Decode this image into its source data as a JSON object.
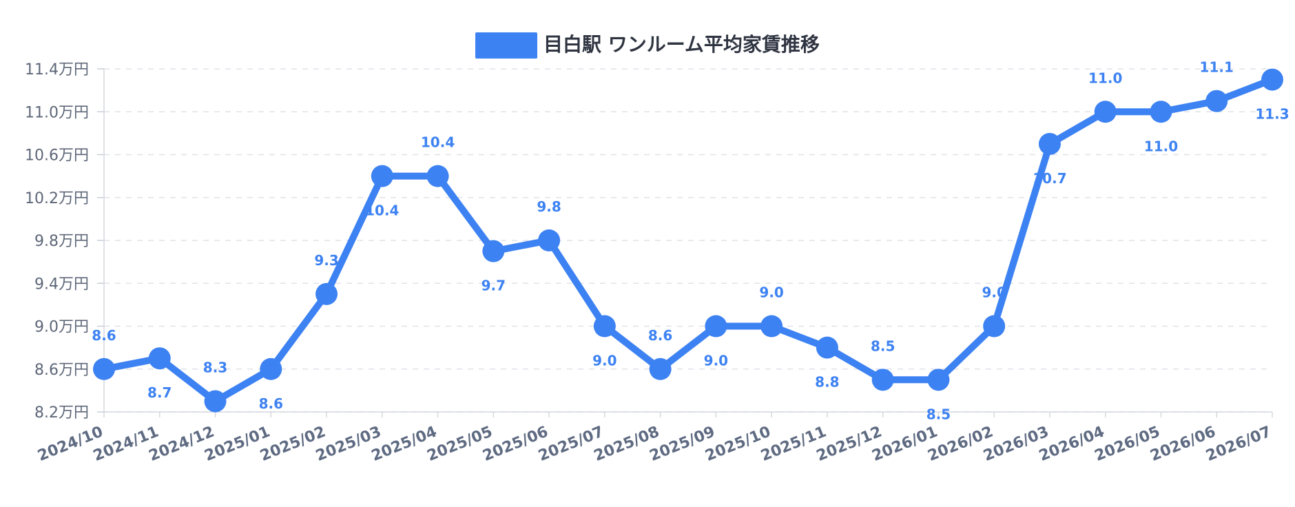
{
  "chart_data": {
    "type": "line",
    "title": "",
    "xlabel": "",
    "ylabel": "",
    "categories": [
      "2024/10",
      "2024/11",
      "2024/12",
      "2025/01",
      "2025/02",
      "2025/03",
      "2025/04",
      "2025/05",
      "2025/06",
      "2025/07",
      "2025/08",
      "2025/09",
      "2025/10",
      "2025/11",
      "2025/12",
      "2026/01",
      "2026/02",
      "2026/03",
      "2026/04",
      "2026/05",
      "2026/06",
      "2026/07"
    ],
    "series": [
      {
        "name": "目白駅 ワンルーム平均家賃推移",
        "color": "#3d82f2",
        "values": [
          8.6,
          8.7,
          8.3,
          8.6,
          9.3,
          10.4,
          10.4,
          9.7,
          9.8,
          9.0,
          8.6,
          9.0,
          9.0,
          8.8,
          8.5,
          8.5,
          9.0,
          10.7,
          11.0,
          11.0,
          11.1,
          11.3
        ],
        "labels": [
          "8.6",
          "8.7",
          "8.3",
          "8.6",
          "9.3",
          "10.4",
          "10.4",
          "9.7",
          "9.8",
          "9.0",
          "8.6",
          "9.0",
          "9.0",
          "8.8",
          "8.5",
          "8.5",
          "9.0",
          "10.7",
          "11.0",
          "11.0",
          "11.1",
          "11.3"
        ]
      }
    ],
    "ylim": [
      8.2,
      11.4
    ],
    "yticks": [
      "8.2万円",
      "8.6万円",
      "9.0万円",
      "9.4万円",
      "9.8万円",
      "10.2万円",
      "10.6万円",
      "11.0万円",
      "11.4万円"
    ],
    "grid": true,
    "legend": "top-center",
    "label_color": "#3d82f2",
    "axis_color": "#5e6778"
  }
}
